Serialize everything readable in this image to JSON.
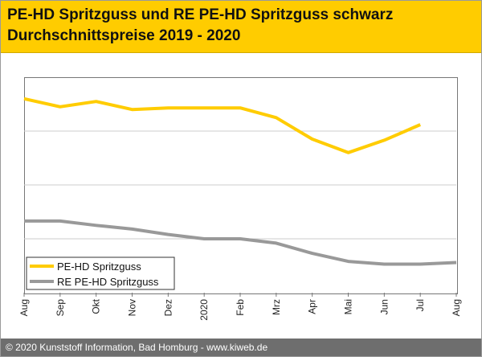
{
  "header": {
    "title_line1": "PE-HD Spritzguss und RE PE-HD Spritzguss schwarz",
    "title_line2": "Durchschnittspreise 2019 - 2020"
  },
  "footer": {
    "copyright": "© 2020 Kunststoff Information, Bad Homburg - www.kiweb.de"
  },
  "colors": {
    "accent": "#ffcc00",
    "series1": "#ffcc00",
    "series2": "#999999",
    "footer_bg": "#6e6e6e"
  },
  "chart_data": {
    "type": "line",
    "title": "PE-HD Spritzguss und RE PE-HD Spritzguss schwarz Durchschnittspreise 2019 - 2020",
    "x": [
      "Aug",
      "Sep",
      "Okt",
      "Nov",
      "Dez",
      "2020",
      "Feb",
      "Mrz",
      "Apr",
      "Mai",
      "Jun",
      "Jul",
      "Aug"
    ],
    "ylim": [
      0,
      4
    ],
    "grid": true,
    "legend": "bottom-left",
    "series": [
      {
        "name": "PE-HD Spritzguss",
        "color": "#ffcc00",
        "values": [
          3.6,
          3.45,
          3.55,
          3.4,
          3.43,
          3.43,
          3.43,
          3.25,
          2.85,
          2.6,
          2.83,
          3.12,
          null
        ]
      },
      {
        "name": "RE PE-HD Spritzguss",
        "color": "#999999",
        "values": [
          1.33,
          1.33,
          1.25,
          1.18,
          1.08,
          1.0,
          1.0,
          0.92,
          0.73,
          0.58,
          0.53,
          0.53,
          0.56
        ]
      }
    ]
  }
}
